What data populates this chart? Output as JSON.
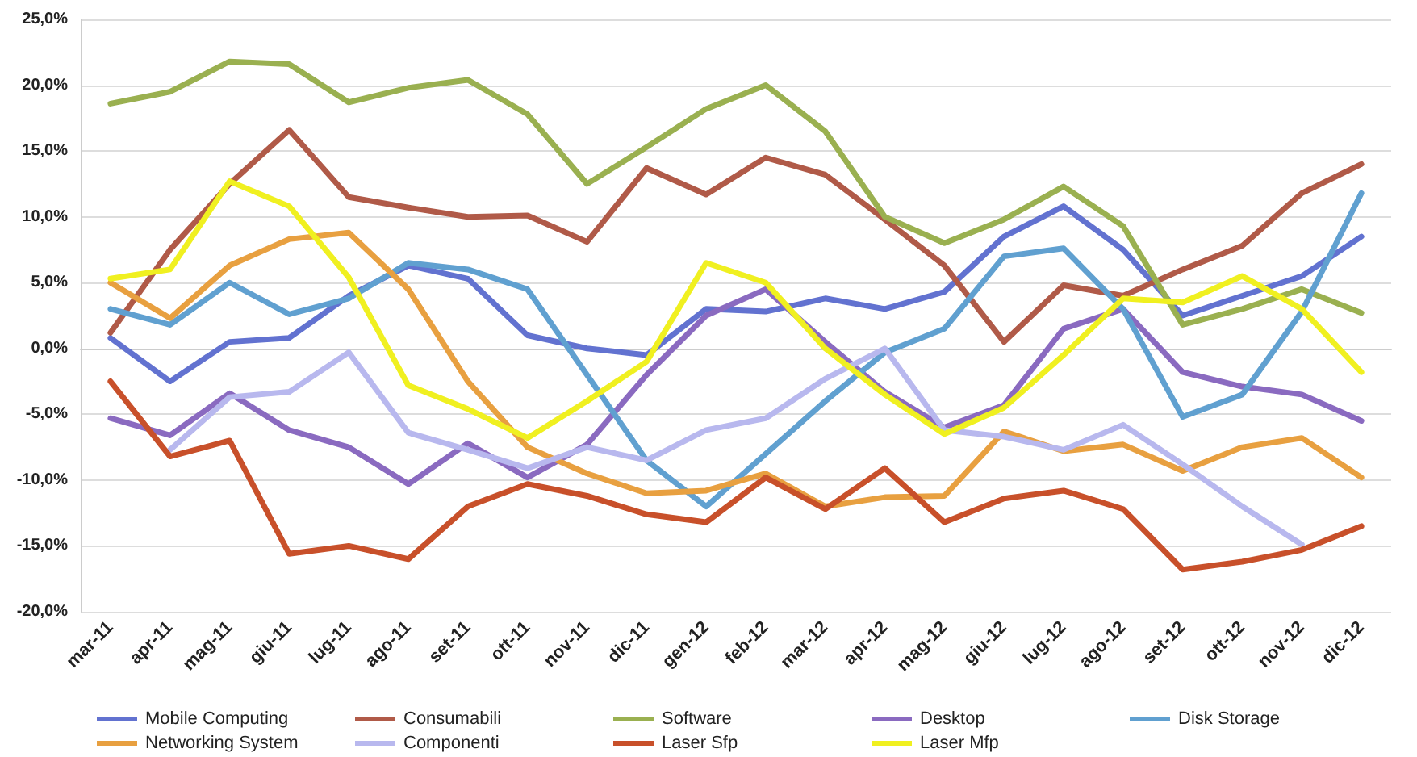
{
  "chart_data": {
    "type": "line",
    "categories": [
      "mar-11",
      "apr-11",
      "mag-11",
      "giu-11",
      "lug-11",
      "ago-11",
      "set-11",
      "ott-11",
      "nov-11",
      "dic-11",
      "gen-12",
      "feb-12",
      "mar-12",
      "apr-12",
      "mag-12",
      "giu-12",
      "lug-12",
      "ago-12",
      "set-12",
      "ott-12",
      "nov-12",
      "dic-12"
    ],
    "series": [
      {
        "name": "Mobile Computing",
        "color": "#6272d0",
        "values": [
          0.8,
          -2.5,
          0.5,
          0.8,
          4,
          6.3,
          5.3,
          1,
          0,
          -0.5,
          3,
          2.8,
          3.8,
          3,
          4.3,
          8.5,
          10.8,
          7.5,
          2.5,
          4,
          5.5,
          8.5
        ]
      },
      {
        "name": "Consumabili",
        "color": "#b05a48",
        "values": [
          1.2,
          7.5,
          12.5,
          16.6,
          11.5,
          10.7,
          10,
          10.1,
          8.1,
          13.7,
          11.7,
          14.5,
          13.2,
          9.8,
          6.3,
          0.5,
          4.8,
          4,
          6,
          7.8,
          11.8,
          14
        ]
      },
      {
        "name": "Software",
        "color": "#9ab050",
        "values": [
          18.6,
          19.5,
          21.8,
          21.6,
          18.7,
          19.8,
          20.4,
          17.8,
          12.5,
          15.3,
          18.2,
          20,
          16.5,
          10,
          8,
          9.8,
          12.3,
          9.3,
          1.8,
          3,
          4.5,
          2.7
        ]
      },
      {
        "name": "Desktop",
        "color": "#8a6ac0",
        "values": [
          -5.3,
          -6.6,
          -3.4,
          -6.2,
          -7.5,
          -10.3,
          -7.2,
          -9.8,
          -7.3,
          -2,
          2.5,
          4.5,
          0.5,
          -3.3,
          -6,
          -4.3,
          1.5,
          3,
          -1.8,
          -2.9,
          -3.5,
          -5.5
        ]
      },
      {
        "name": "Disk Storage",
        "color": "#60a0d0",
        "values": [
          3,
          1.8,
          5,
          2.6,
          3.8,
          6.5,
          6,
          4.5,
          -2,
          -8.5,
          -12,
          -8,
          -4,
          -0.3,
          1.5,
          7,
          7.6,
          3,
          -5.2,
          -3.5,
          2.8,
          11.8
        ]
      },
      {
        "name": "Networking System",
        "color": "#e8a040",
        "values": [
          5,
          2.3,
          6.3,
          8.3,
          8.8,
          4.5,
          -2.5,
          -7.5,
          -9.5,
          -11,
          -10.8,
          -9.5,
          -12,
          -11.3,
          -11.2,
          -6.3,
          -7.8,
          -7.3,
          -9.3,
          -7.5,
          -6.8,
          -9.8
        ]
      },
      {
        "name": "Componenti",
        "color": "#b8b8ee",
        "values": [
          null,
          -7.7,
          -3.7,
          -3.3,
          -0.3,
          -6.4,
          -7.7,
          -9.1,
          -7.5,
          -8.5,
          -6.2,
          -5.3,
          -2.3,
          0,
          -6.2,
          -6.7,
          -7.7,
          -5.8,
          -8.8,
          -12,
          -14.9,
          null
        ]
      },
      {
        "name": "Laser Sfp",
        "color": "#c8502a",
        "values": [
          -2.5,
          -8.2,
          -7,
          -15.6,
          -15,
          -16,
          -12,
          -10.3,
          -11.2,
          -12.6,
          -13.2,
          -9.8,
          -12.2,
          -9.1,
          -13.2,
          -11.4,
          -10.8,
          -12.2,
          -16.8,
          -16.2,
          -15.3,
          -13.5
        ]
      },
      {
        "name": "Laser Mfp",
        "color": "#f0f020",
        "values": [
          5.3,
          6,
          12.7,
          10.8,
          5.4,
          -2.8,
          -4.6,
          -6.8,
          -4,
          -1,
          6.5,
          5,
          0,
          -3.5,
          -6.5,
          -4.5,
          -0.5,
          3.8,
          3.5,
          5.5,
          3,
          -1.8
        ]
      }
    ],
    "ylim": [
      -20,
      25
    ],
    "yticks": [
      {
        "value": -20,
        "label": "-20,0%"
      },
      {
        "value": -15,
        "label": "-15,0%"
      },
      {
        "value": -10,
        "label": "-10,0%"
      },
      {
        "value": -5,
        "label": "-5,0%"
      },
      {
        "value": 0,
        "label": "0,0%"
      },
      {
        "value": 5,
        "label": "5,0%"
      },
      {
        "value": 10,
        "label": "10,0%"
      },
      {
        "value": 15,
        "label": "15,0%"
      },
      {
        "value": 20,
        "label": "20,0%"
      },
      {
        "value": 25,
        "label": "25,0%"
      }
    ],
    "grid": "y",
    "legend": "bottom",
    "marker": "none",
    "line_style": "solid"
  }
}
